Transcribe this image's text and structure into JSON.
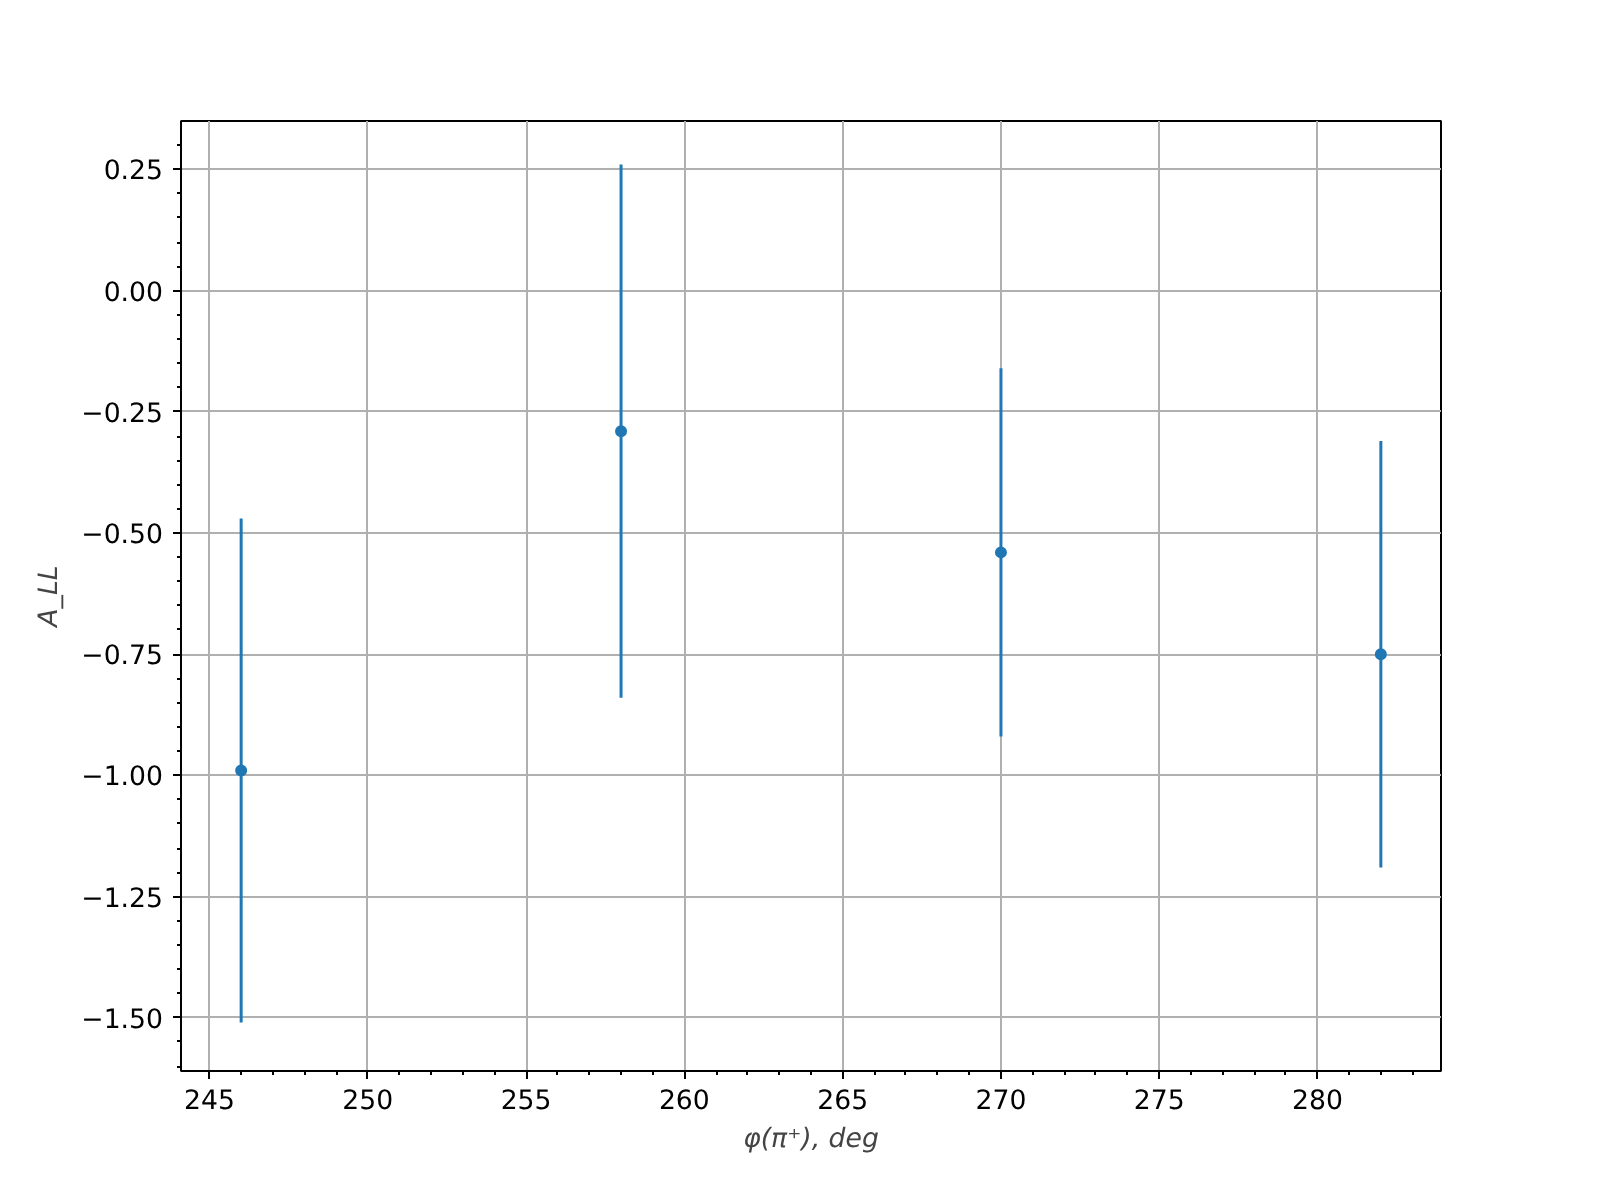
{
  "chart_data": {
    "type": "scatter",
    "xlabel": "φ(π⁺), deg",
    "ylabel": "A_LL",
    "x": [
      246,
      258,
      270,
      282
    ],
    "series": [
      {
        "color": "#1f77b4",
        "values": [
          -0.99,
          -0.29,
          -0.54,
          -0.75
        ],
        "errors": [
          0.52,
          0.55,
          0.38,
          0.44
        ]
      }
    ],
    "xlim": [
      244.1,
      283.9
    ],
    "xticks": [
      245,
      250,
      255,
      260,
      265,
      270,
      275,
      280
    ],
    "ylim": [
      -1.61,
      0.35
    ],
    "yticks": [
      {
        "value": 0.25,
        "label": "0.25"
      },
      {
        "value": 0,
        "label": "0.00"
      },
      {
        "value": -0.25,
        "label": "−0.25"
      },
      {
        "value": -0.5,
        "label": "−0.50"
      },
      {
        "value": -0.75,
        "label": "−0.75"
      },
      {
        "value": -1,
        "label": "−1.00"
      },
      {
        "value": -1.25,
        "label": "−1.25"
      },
      {
        "value": -1.5,
        "label": "−1.50"
      }
    ],
    "grid": true,
    "marker": "circle"
  }
}
